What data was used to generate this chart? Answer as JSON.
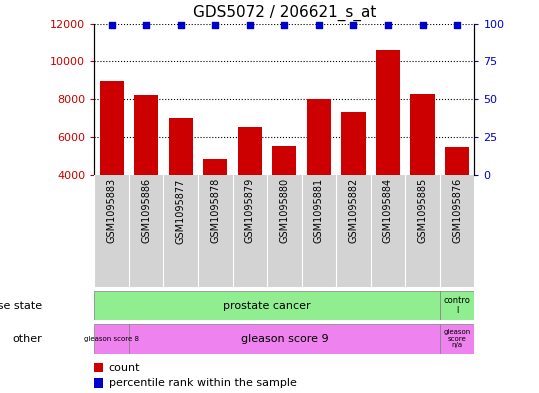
{
  "title": "GDS5072 / 206621_s_at",
  "samples": [
    "GSM1095883",
    "GSM1095886",
    "GSM1095877",
    "GSM1095878",
    "GSM1095879",
    "GSM1095880",
    "GSM1095881",
    "GSM1095882",
    "GSM1095884",
    "GSM1095885",
    "GSM1095876"
  ],
  "counts": [
    8950,
    8250,
    7000,
    4850,
    6550,
    5550,
    8000,
    7300,
    10600,
    8300,
    5450
  ],
  "percentiles": [
    99,
    99,
    99,
    99,
    99,
    99,
    99,
    99,
    99,
    99,
    99
  ],
  "bar_color": "#cc0000",
  "dot_color": "#0000cc",
  "ylim_left": [
    4000,
    12000
  ],
  "ylim_right": [
    0,
    100
  ],
  "yticks_left": [
    4000,
    6000,
    8000,
    10000,
    12000
  ],
  "yticks_right": [
    0,
    25,
    50,
    75,
    100
  ],
  "grid_values": [
    6000,
    8000,
    10000,
    12000
  ],
  "disease_state_prostate_label": "prostate cancer",
  "disease_state_control_label": "contro\nl",
  "disease_state_color": "#90ee90",
  "other_g8_label": "gleason score 8",
  "other_g9_label": "gleason score 9",
  "other_gna_label": "gleason\nscore\nn/a",
  "other_color": "#ee82ee",
  "xtick_bg_color": "#d3d3d3",
  "left_label_ds": "disease state",
  "left_label_other": "other",
  "legend_items": [
    "count",
    "percentile rank within the sample"
  ],
  "bar_width": 0.7,
  "n_prostate": 10,
  "n_total": 11
}
